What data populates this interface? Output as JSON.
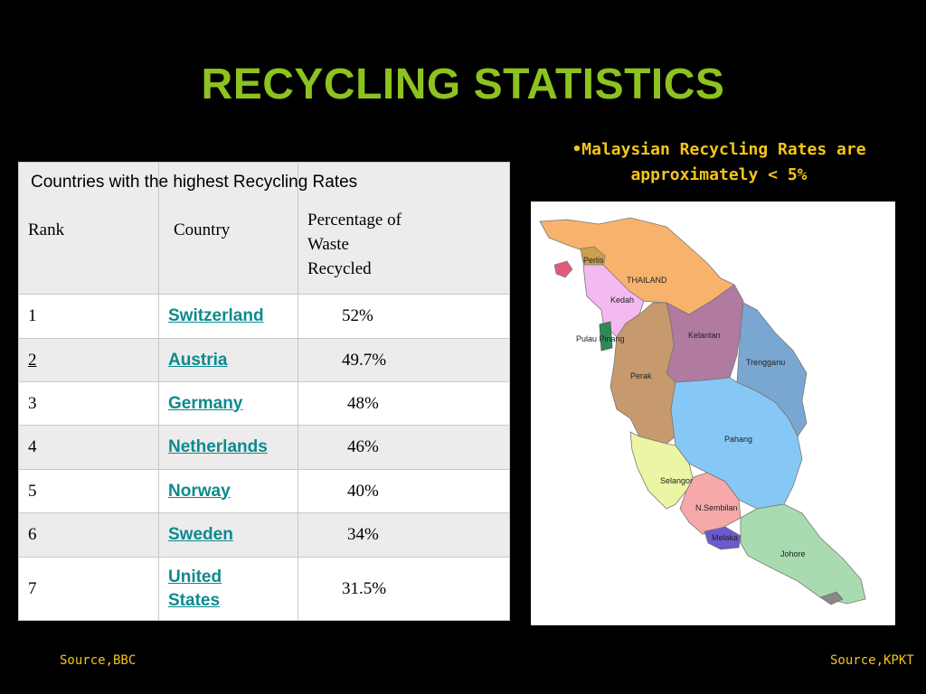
{
  "slide": {
    "title": "RECYCLING STATISTICS",
    "note": "•Malaysian Recycling Rates are approximately < 5%",
    "source_left": "Source,BBC",
    "source_right": "Source,KPKT"
  },
  "table": {
    "caption": "Countries with the highest Recycling Rates",
    "headers": {
      "rank": "Rank",
      "country": "Country",
      "percentage": "Percentage of Waste Recycled"
    },
    "rows": [
      {
        "rank": "1",
        "country": "Switzerland",
        "pct": "52%"
      },
      {
        "rank": "2",
        "country": "Austria",
        "pct": "49.7%"
      },
      {
        "rank": "3",
        "country": "Germany",
        "pct": "48%"
      },
      {
        "rank": "4",
        "country": "Netherlands",
        "pct": "46%"
      },
      {
        "rank": "5",
        "country": "Norway",
        "pct": "40%"
      },
      {
        "rank": "6",
        "country": "Sweden",
        "pct": "34%"
      },
      {
        "rank": "7",
        "country": "United States",
        "pct": "31.5%"
      }
    ]
  },
  "map": {
    "labels": {
      "perlis": "Perlis",
      "thailand": "THAILAND",
      "kedah": "Kedah",
      "pulau_pinang": "Pulau Pinang",
      "kelantan": "Kelantan",
      "terengganu": "Trengganu",
      "perak": "Perak",
      "pahang": "Pahang",
      "selangor": "Selangor",
      "n_sembilan": "N.Sembilan",
      "melaka": "Melaka",
      "johore": "Johore"
    },
    "colors": {
      "thailand": "#f7b36b",
      "perlis": "#c9a14a",
      "kedah": "#f3b9f0",
      "pinang": "#2e8b57",
      "kelantan": "#b07aa1",
      "terengganu": "#7aa7d1",
      "perak": "#c69a6d",
      "pahang": "#86c8f5",
      "selangor": "#ecf5a3",
      "n_sembilan": "#f7a8a8",
      "melaka": "#6a5acd",
      "johore": "#a8dcb0"
    }
  }
}
